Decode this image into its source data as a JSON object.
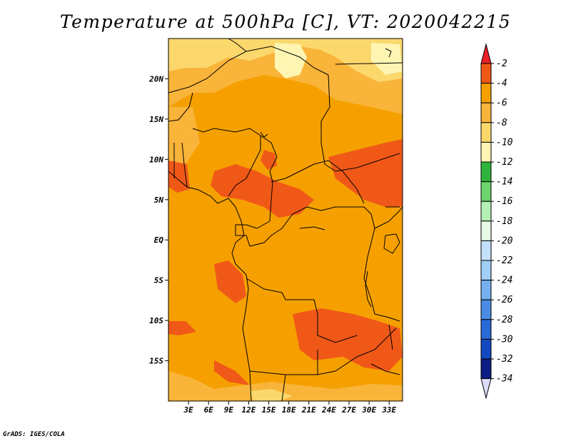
{
  "title": "Temperature at 500hPa [C], VT: 2020042215",
  "credit": "GrADS: IGES/COLA",
  "lat_ticks": [
    {
      "label": "20N",
      "value": 20
    },
    {
      "label": "15N",
      "value": 15
    },
    {
      "label": "10N",
      "value": 10
    },
    {
      "label": "5N",
      "value": 5
    },
    {
      "label": "EQ",
      "value": 0
    },
    {
      "label": "5S",
      "value": -5
    },
    {
      "label": "10S",
      "value": -10
    },
    {
      "label": "15S",
      "value": -15
    }
  ],
  "lon_ticks": [
    {
      "label": "3E",
      "value": 3
    },
    {
      "label": "6E",
      "value": 6
    },
    {
      "label": "9E",
      "value": 9
    },
    {
      "label": "12E",
      "value": 12
    },
    {
      "label": "15E",
      "value": 15
    },
    {
      "label": "18E",
      "value": 18
    },
    {
      "label": "21E",
      "value": 21
    },
    {
      "label": "24E",
      "value": 24
    },
    {
      "label": "27E",
      "value": 27
    },
    {
      "label": "30E",
      "value": 30
    },
    {
      "label": "33E",
      "value": 33
    }
  ],
  "map_extent": {
    "lon_min": 0,
    "lon_max": 35,
    "lat_min": -20,
    "lat_max": 25
  },
  "colorbar": {
    "labels": [
      "-2",
      "-4",
      "-6",
      "-8",
      "-10",
      "-12",
      "-14",
      "-16",
      "-18",
      "-20",
      "-22",
      "-24",
      "-26",
      "-28",
      "-30",
      "-32",
      "-34"
    ],
    "colors": [
      "#e8202a",
      "#f05818",
      "#f5a000",
      "#f9b43a",
      "#fcd86c",
      "#fef5b3",
      "#2eb43c",
      "#6bd56b",
      "#b4f0b4",
      "#e6fae6",
      "#c4e0fa",
      "#a0cef5",
      "#76b0ee",
      "#4a8ce4",
      "#2a6ad8",
      "#1248c0",
      "#0c1e82",
      "#dcdcf8"
    ]
  },
  "colors": {
    "base": "#f5a000",
    "warm": "#f05818",
    "cool": "#f9b43a",
    "cooler": "#fcd86c",
    "coolest": "#fef5b3",
    "boundary": "#000000"
  }
}
